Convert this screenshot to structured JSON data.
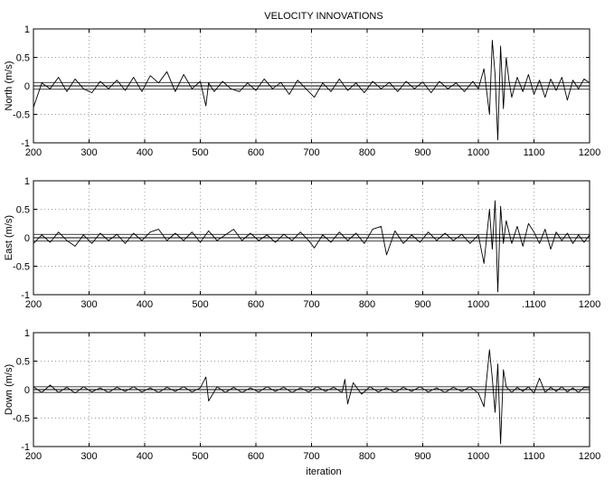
{
  "chart_data": {
    "type": "line",
    "title": "VELOCITY INNOVATIONS",
    "xlabel": "iteration",
    "xlim": [
      200,
      1200
    ],
    "x_ticks": [
      "200",
      "300",
      "400",
      "500",
      "600",
      "700",
      "800",
      "900",
      "1000",
      "1100",
      "1200"
    ],
    "ylim": [
      -1,
      1
    ],
    "y_ticks": [
      "1",
      "0.5",
      "0",
      "-0.5",
      "-1"
    ],
    "grid": true,
    "panels": [
      {
        "ylabel": "North (m/s)",
        "bounds": 0.06,
        "x_tick_labels": [
          "200",
          "300",
          "400",
          "500",
          "600",
          "700",
          "800",
          "900",
          "1000",
          "1100",
          "1200"
        ],
        "series": [
          {
            "x": [
              200,
              215,
              230,
              245,
              260,
              275,
              290,
              305,
              320,
              335,
              350,
              365,
              380,
              395,
              410,
              425,
              440,
              455,
              470,
              485,
              500,
              510,
              515,
              525,
              540,
              555,
              570,
              585,
              600,
              615,
              630,
              645,
              660,
              675,
              690,
              705,
              720,
              735,
              750,
              765,
              780,
              795,
              810,
              825,
              840,
              855,
              870,
              885,
              900,
              915,
              930,
              945,
              960,
              975,
              990,
              1000,
              1010,
              1020,
              1025,
              1030,
              1035,
              1040,
              1045,
              1050,
              1055,
              1060,
              1070,
              1080,
              1090,
              1100,
              1110,
              1120,
              1130,
              1140,
              1150,
              1160,
              1170,
              1180,
              1190,
              1200
            ],
            "y": [
              -0.38,
              0.05,
              -0.05,
              0.15,
              -0.1,
              0.12,
              -0.05,
              -0.12,
              0.08,
              -0.05,
              0.1,
              -0.08,
              0.15,
              -0.1,
              0.18,
              0.05,
              0.25,
              -0.1,
              0.2,
              -0.05,
              0.08,
              -0.35,
              0.05,
              -0.1,
              0.08,
              -0.05,
              -0.1,
              0.05,
              -0.08,
              0.12,
              -0.05,
              0.06,
              -0.15,
              0.1,
              -0.05,
              -0.2,
              0.05,
              -0.1,
              0.12,
              -0.08,
              0.05,
              -0.12,
              0.08,
              -0.05,
              0.06,
              -0.1,
              0.08,
              -0.05,
              0.07,
              -0.12,
              0.08,
              -0.05,
              0.05,
              -0.1,
              0.08,
              -0.05,
              0.3,
              -0.5,
              0.8,
              0.2,
              -0.95,
              0.7,
              -0.4,
              0.5,
              0.1,
              -0.2,
              0.15,
              -0.1,
              0.2,
              -0.15,
              0.1,
              -0.2,
              0.12,
              -0.08,
              0.15,
              -0.25,
              0.1,
              -0.05,
              0.12,
              0.05
            ]
          }
        ]
      },
      {
        "ylabel": "East (m/s)",
        "bounds": 0.06,
        "x_tick_labels": [
          "200",
          "300",
          "400",
          "500",
          "600",
          "700",
          "800",
          "900",
          "1000",
          ".1100",
          "1200"
        ],
        "series": [
          {
            "x": [
              200,
              215,
              230,
              245,
              260,
              275,
              290,
              305,
              320,
              335,
              350,
              365,
              380,
              395,
              410,
              425,
              440,
              455,
              470,
              485,
              500,
              515,
              530,
              545,
              560,
              575,
              590,
              605,
              620,
              635,
              650,
              665,
              680,
              695,
              705,
              720,
              735,
              750,
              765,
              780,
              795,
              810,
              825,
              835,
              850,
              865,
              880,
              895,
              910,
              925,
              940,
              955,
              970,
              985,
              1000,
              1010,
              1020,
              1025,
              1030,
              1035,
              1040,
              1045,
              1050,
              1060,
              1070,
              1080,
              1090,
              1100,
              1110,
              1120,
              1130,
              1140,
              1150,
              1160,
              1170,
              1180,
              1190,
              1200
            ],
            "y": [
              -0.1,
              0.05,
              -0.08,
              0.1,
              -0.05,
              -0.15,
              0.05,
              -0.1,
              0.08,
              -0.05,
              0.06,
              -0.1,
              0.08,
              -0.05,
              0.1,
              0.15,
              -0.05,
              0.08,
              -0.05,
              0.1,
              -0.08,
              0.12,
              -0.05,
              0.05,
              0.15,
              -0.05,
              0.08,
              -0.05,
              0.05,
              -0.08,
              0.06,
              -0.05,
              0.1,
              -0.05,
              -0.18,
              0.05,
              -0.08,
              0.1,
              -0.05,
              0.08,
              -0.1,
              0.15,
              0.2,
              -0.3,
              0.12,
              -0.1,
              0.05,
              -0.08,
              0.1,
              -0.05,
              0.08,
              -0.05,
              0.06,
              -0.1,
              0.05,
              -0.45,
              0.5,
              -0.2,
              0.65,
              -0.95,
              0.55,
              -0.1,
              0.3,
              -0.1,
              0.2,
              -0.15,
              0.25,
              0.1,
              -0.1,
              0.15,
              -0.2,
              0.1,
              -0.05,
              0.08,
              -0.1,
              0.05,
              -0.08,
              0.05
            ]
          }
        ]
      },
      {
        "ylabel": "Down (m/s)",
        "bounds": 0.05,
        "x_tick_labels": [
          "200",
          "300",
          "400",
          "500",
          "600",
          "700",
          "800",
          "900",
          "1000",
          "1100",
          "1200"
        ],
        "series": [
          {
            "x": [
              200,
              215,
              230,
              245,
              260,
              275,
              290,
              305,
              320,
              335,
              350,
              365,
              380,
              395,
              410,
              425,
              440,
              455,
              470,
              485,
              500,
              510,
              515,
              530,
              545,
              560,
              575,
              590,
              605,
              620,
              635,
              650,
              665,
              680,
              695,
              710,
              725,
              740,
              755,
              760,
              765,
              775,
              790,
              805,
              820,
              835,
              850,
              865,
              880,
              895,
              910,
              925,
              940,
              955,
              970,
              985,
              1000,
              1010,
              1020,
              1025,
              1030,
              1035,
              1040,
              1045,
              1050,
              1060,
              1070,
              1080,
              1090,
              1100,
              1110,
              1120,
              1130,
              1140,
              1150,
              1160,
              1170,
              1180,
              1190,
              1200
            ],
            "y": [
              0.05,
              -0.05,
              0.08,
              -0.05,
              0.04,
              -0.06,
              0.05,
              -0.04,
              0.03,
              -0.05,
              0.04,
              -0.03,
              0.05,
              -0.04,
              0.03,
              -0.05,
              0.04,
              -0.03,
              0.05,
              -0.04,
              0.03,
              0.22,
              -0.2,
              0.05,
              -0.05,
              0.04,
              -0.05,
              0.03,
              -0.04,
              0.05,
              -0.03,
              0.04,
              -0.05,
              0.03,
              -0.04,
              0.05,
              -0.03,
              0.04,
              -0.05,
              0.18,
              -0.25,
              0.12,
              -0.08,
              0.05,
              -0.04,
              0.03,
              -0.05,
              0.04,
              -0.03,
              0.05,
              -0.04,
              0.03,
              -0.05,
              0.04,
              -0.03,
              0.05,
              -0.06,
              -0.3,
              0.7,
              0.2,
              -0.4,
              0.45,
              -0.95,
              0.35,
              0.05,
              -0.05,
              0.04,
              -0.03,
              0.05,
              -0.06,
              0.2,
              -0.05,
              0.04,
              -0.03,
              0.05,
              -0.04,
              0.03,
              -0.05,
              0.04,
              0.03
            ]
          }
        ]
      }
    ]
  }
}
